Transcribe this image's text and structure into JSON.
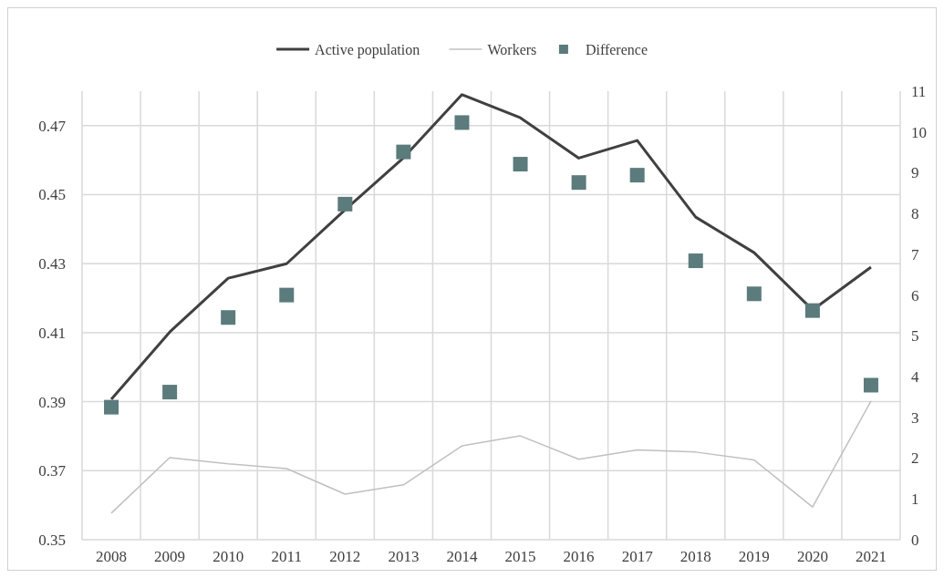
{
  "chart_data": {
    "type": "line",
    "categories": [
      "2008",
      "2009",
      "2010",
      "2011",
      "2012",
      "2013",
      "2014",
      "2015",
      "2016",
      "2017",
      "2018",
      "2019",
      "2020",
      "2021"
    ],
    "series": [
      {
        "name": "Active population",
        "color": "#404040",
        "values": [
          0.3907,
          0.4102,
          0.4258,
          0.43,
          0.4456,
          0.4607,
          0.479,
          0.4723,
          0.4606,
          0.4657,
          0.4435,
          0.4332,
          0.4166,
          0.429
        ]
      },
      {
        "name": "Workers",
        "color": "#c0c0c0",
        "values": [
          0.3577,
          0.3738,
          0.372,
          0.3706,
          0.3632,
          0.3659,
          0.3772,
          0.3801,
          0.3733,
          0.376,
          0.3754,
          0.3731,
          0.3595,
          0.3902
        ]
      },
      {
        "name": "Difference",
        "type": "scatter",
        "marker": "square",
        "axis": "y2",
        "color": "#5b7b7c",
        "values": [
          3.25,
          3.62,
          5.45,
          6.0,
          8.23,
          9.51,
          10.23,
          9.21,
          8.76,
          8.94,
          6.84,
          6.03,
          5.62,
          3.79
        ]
      }
    ],
    "ylim": [
      0.35,
      0.48
    ],
    "yticks": [
      {
        "value": 0.35,
        "label": "0.35"
      },
      {
        "value": 0.37,
        "label": "0.37"
      },
      {
        "value": 0.39,
        "label": "0.39"
      },
      {
        "value": 0.41,
        "label": "0.41"
      },
      {
        "value": 0.43,
        "label": "0.43"
      },
      {
        "value": 0.45,
        "label": "0.45"
      },
      {
        "value": 0.47,
        "label": "0.47"
      }
    ],
    "y2lim": [
      0,
      11
    ],
    "y2ticks": [
      0,
      1,
      2,
      3,
      4,
      5,
      6,
      7,
      8,
      9,
      10,
      11
    ],
    "grid": true,
    "legend": "top"
  }
}
